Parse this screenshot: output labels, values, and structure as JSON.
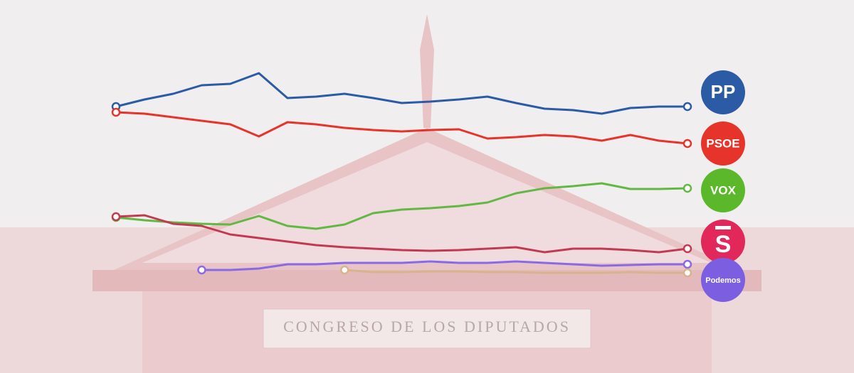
{
  "background": {
    "label": "CONGRESO DE LOS DIPUTADOS"
  },
  "chart_data": {
    "type": "line",
    "x": [
      0,
      1,
      2,
      3,
      4,
      5,
      6,
      7,
      8,
      9,
      10,
      11,
      12,
      13,
      14,
      15,
      16,
      17,
      18,
      19,
      20
    ],
    "xlim": [
      0,
      20
    ],
    "ylim": [
      0,
      40
    ],
    "series": [
      {
        "name": "PP",
        "color": "#2c5ba6",
        "values": [
          32,
          33,
          33.8,
          35,
          35.2,
          36.7,
          33.2,
          33.4,
          33.8,
          33.2,
          32.5,
          32.7,
          33,
          33.4,
          32.5,
          31.7,
          31.5,
          31,
          31.8,
          32,
          32
        ]
      },
      {
        "name": "PSOE",
        "color": "#e6342b",
        "values": [
          31.2,
          31,
          30.5,
          30,
          29.5,
          27.8,
          29.8,
          29.5,
          29,
          28.7,
          28.5,
          28.7,
          28.8,
          27.5,
          27.7,
          28,
          27.8,
          27.2,
          28,
          27.2,
          26.8
        ]
      },
      {
        "name": "VOX",
        "color": "#63b843",
        "values": [
          16.4,
          16,
          15.7,
          15.5,
          15.4,
          16.6,
          15.2,
          14.8,
          15.4,
          17,
          17.5,
          17.7,
          18,
          18.5,
          19.8,
          20.5,
          20.8,
          21.2,
          20.4,
          20.4,
          20.5
        ]
      },
      {
        "name": "S",
        "color": "#c23a52",
        "values": [
          16.5,
          16.7,
          15.5,
          15.2,
          14,
          13.5,
          13,
          12.5,
          12.2,
          12,
          11.8,
          11.7,
          11.8,
          12,
          12.2,
          11.5,
          12,
          12,
          11.8,
          11.5,
          12
        ]
      },
      {
        "name": "Podemos",
        "color": "#8a6ae4",
        "values": [
          null,
          null,
          null,
          9,
          9,
          9.2,
          9.8,
          9.8,
          10,
          10,
          10,
          10.2,
          10,
          10,
          10.2,
          10,
          9.8,
          9.6,
          9.7,
          9.8,
          9.8
        ]
      },
      {
        "color": "#d8b48c",
        "values": [
          null,
          null,
          null,
          null,
          null,
          null,
          null,
          null,
          9,
          8.7,
          8.7,
          8.8,
          8.8,
          8.7,
          8.7,
          8.6,
          8.6,
          8.6,
          8.7,
          8.6,
          8.6
        ]
      }
    ],
    "logo_colors": [
      "#2c5ba6",
      "#e6342b",
      "#5bb82a",
      "#e2285a",
      "#7b5fe0"
    ]
  }
}
